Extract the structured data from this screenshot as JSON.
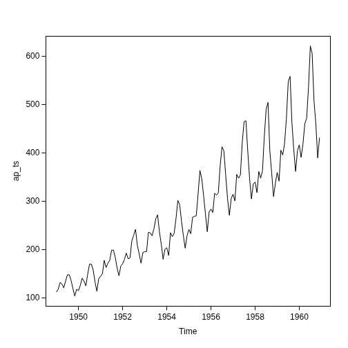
{
  "chart_data": {
    "type": "line",
    "x_label": "Time",
    "y_label": "ap_ts",
    "color": "#000000",
    "grid": false,
    "x": [
      1949,
      1949.0833,
      1949.1667,
      1949.25,
      1949.3333,
      1949.4167,
      1949.5,
      1949.5833,
      1949.6667,
      1949.75,
      1949.8333,
      1949.9167,
      1950,
      1950.0833,
      1950.1667,
      1950.25,
      1950.3333,
      1950.4167,
      1950.5,
      1950.5833,
      1950.6667,
      1950.75,
      1950.8333,
      1950.9167,
      1951,
      1951.0833,
      1951.1667,
      1951.25,
      1951.3333,
      1951.4167,
      1951.5,
      1951.5833,
      1951.6667,
      1951.75,
      1951.8333,
      1951.9167,
      1952,
      1952.0833,
      1952.1667,
      1952.25,
      1952.3333,
      1952.4167,
      1952.5,
      1952.5833,
      1952.6667,
      1952.75,
      1952.8333,
      1952.9167,
      1953,
      1953.0833,
      1953.1667,
      1953.25,
      1953.3333,
      1953.4167,
      1953.5,
      1953.5833,
      1953.6667,
      1953.75,
      1953.8333,
      1953.9167,
      1954,
      1954.0833,
      1954.1667,
      1954.25,
      1954.3333,
      1954.4167,
      1954.5,
      1954.5833,
      1954.6667,
      1954.75,
      1954.8333,
      1954.9167,
      1955,
      1955.0833,
      1955.1667,
      1955.25,
      1955.3333,
      1955.4167,
      1955.5,
      1955.5833,
      1955.6667,
      1955.75,
      1955.8333,
      1955.9167,
      1956,
      1956.0833,
      1956.1667,
      1956.25,
      1956.3333,
      1956.4167,
      1956.5,
      1956.5833,
      1956.6667,
      1956.75,
      1956.8333,
      1956.9167,
      1957,
      1957.0833,
      1957.1667,
      1957.25,
      1957.3333,
      1957.4167,
      1957.5,
      1957.5833,
      1957.6667,
      1957.75,
      1957.8333,
      1957.9167,
      1958,
      1958.0833,
      1958.1667,
      1958.25,
      1958.3333,
      1958.4167,
      1958.5,
      1958.5833,
      1958.6667,
      1958.75,
      1958.8333,
      1958.9167,
      1959,
      1959.0833,
      1959.1667,
      1959.25,
      1959.3333,
      1959.4167,
      1959.5,
      1959.5833,
      1959.6667,
      1959.75,
      1959.8333,
      1959.9167,
      1960,
      1960.0833,
      1960.1667,
      1960.25,
      1960.3333,
      1960.4167,
      1960.5,
      1960.5833,
      1960.6667,
      1960.75,
      1960.8333,
      1960.9167
    ],
    "values": [
      112,
      118,
      132,
      129,
      121,
      135,
      148,
      148,
      136,
      119,
      104,
      118,
      115,
      126,
      141,
      135,
      125,
      149,
      170,
      170,
      158,
      133,
      114,
      140,
      145,
      150,
      178,
      163,
      172,
      178,
      199,
      199,
      184,
      162,
      146,
      166,
      171,
      180,
      193,
      181,
      183,
      218,
      230,
      242,
      209,
      191,
      172,
      194,
      196,
      196,
      236,
      235,
      229,
      243,
      264,
      272,
      237,
      211,
      180,
      201,
      204,
      188,
      235,
      227,
      234,
      264,
      302,
      293,
      259,
      229,
      203,
      229,
      242,
      233,
      267,
      269,
      270,
      315,
      364,
      347,
      312,
      274,
      237,
      278,
      284,
      277,
      317,
      313,
      318,
      374,
      413,
      405,
      355,
      306,
      271,
      306,
      315,
      301,
      356,
      348,
      355,
      422,
      465,
      467,
      404,
      347,
      305,
      336,
      340,
      318,
      362,
      348,
      363,
      435,
      491,
      505,
      404,
      359,
      310,
      337,
      360,
      342,
      406,
      396,
      420,
      472,
      548,
      559,
      463,
      407,
      362,
      405,
      417,
      391,
      419,
      461,
      472,
      535,
      622,
      606,
      508,
      461,
      390,
      432
    ],
    "xlim": [
      1948.523,
      1961.393
    ],
    "ylim": [
      83.28,
      642.72
    ],
    "xticks": [
      1950,
      1952,
      1954,
      1956,
      1958,
      1960
    ],
    "yticks": [
      100,
      200,
      300,
      400,
      500,
      600
    ]
  }
}
